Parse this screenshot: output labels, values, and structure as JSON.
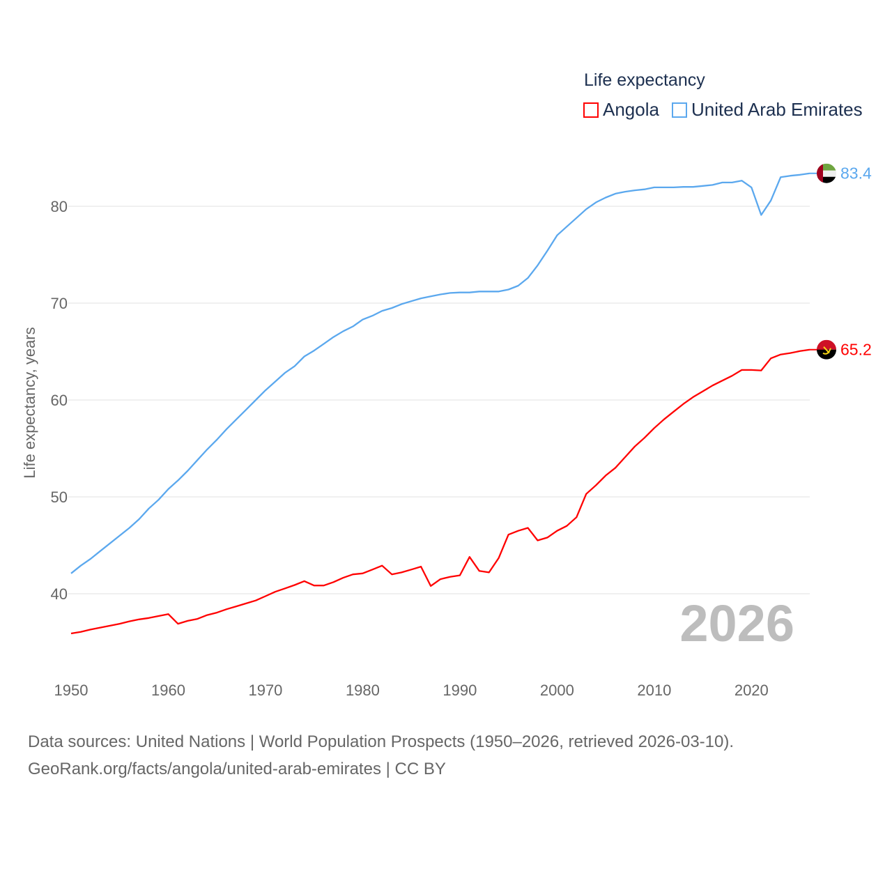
{
  "legend": {
    "title": "Life expectancy",
    "items": [
      {
        "label": "Angola",
        "color": "#ff0000"
      },
      {
        "label": "United Arab Emirates",
        "color": "#5ba8ee"
      }
    ]
  },
  "footer": {
    "line1": "Data sources: United Nations | World Population Prospects (1950–2026, retrieved 2026-03-10).",
    "line2": "GeoRank.org/facts/angola/united-arab-emirates | CC BY"
  },
  "chart_data": {
    "type": "line",
    "title": "Life expectancy",
    "xlabel": "",
    "ylabel": "Life expectancy, years",
    "xlim": [
      1950,
      2026
    ],
    "ylim": [
      35,
      85
    ],
    "xticks": [
      1950,
      1960,
      1970,
      1980,
      1990,
      2000,
      2010,
      2020
    ],
    "yticks": [
      40,
      50,
      60,
      70,
      80
    ],
    "grid": true,
    "legend_position": "top-right",
    "year_label": "2026",
    "x_start": 1950,
    "series": [
      {
        "name": "Angola",
        "color": "#ff0000",
        "end_label": "65.2",
        "flag": "angola-flag",
        "values": [
          35.9,
          36.06,
          36.3,
          36.5,
          36.7,
          36.9,
          37.15,
          37.35,
          37.5,
          37.7,
          37.9,
          36.9,
          37.2,
          37.4,
          37.8,
          38.05,
          38.4,
          38.7,
          39.0,
          39.3,
          39.75,
          40.2,
          40.55,
          40.9,
          41.3,
          40.85,
          40.85,
          41.2,
          41.65,
          42.0,
          42.1,
          42.5,
          42.9,
          42.0,
          42.2,
          42.5,
          42.8,
          40.8,
          41.5,
          41.75,
          41.9,
          43.8,
          42.35,
          42.2,
          43.7,
          46.1,
          46.5,
          46.8,
          45.5,
          45.8,
          46.5,
          47.0,
          47.9,
          50.3,
          51.2,
          52.2,
          53.0,
          54.1,
          55.2,
          56.1,
          57.1,
          58.0,
          58.8,
          59.6,
          60.3,
          60.9,
          61.5,
          62.0,
          62.5,
          63.1,
          63.1,
          63.05,
          64.3,
          64.7,
          64.85,
          65.05,
          65.2
        ]
      },
      {
        "name": "United Arab Emirates",
        "color": "#5ba8ee",
        "end_label": "83.4",
        "flag": "uae-flag",
        "values": [
          42.1,
          42.9,
          43.6,
          44.4,
          45.2,
          46.0,
          46.8,
          47.7,
          48.8,
          49.7,
          50.8,
          51.7,
          52.7,
          53.8,
          54.9,
          55.9,
          57.0,
          58.0,
          59.0,
          60.0,
          61.0,
          61.9,
          62.8,
          63.5,
          64.5,
          65.1,
          65.8,
          66.5,
          67.1,
          67.6,
          68.3,
          68.7,
          69.2,
          69.5,
          69.9,
          70.2,
          70.5,
          70.7,
          70.9,
          71.05,
          71.1,
          71.1,
          71.2,
          71.2,
          71.2,
          71.4,
          71.8,
          72.6,
          73.9,
          75.4,
          77.0,
          77.9,
          78.8,
          79.7,
          80.4,
          80.9,
          81.3,
          81.5,
          81.65,
          81.75,
          81.95,
          81.95,
          81.95,
          82.0,
          82.0,
          82.1,
          82.2,
          82.45,
          82.45,
          82.65,
          81.95,
          79.1,
          80.6,
          83.0,
          83.15,
          83.25,
          83.4
        ]
      }
    ]
  }
}
